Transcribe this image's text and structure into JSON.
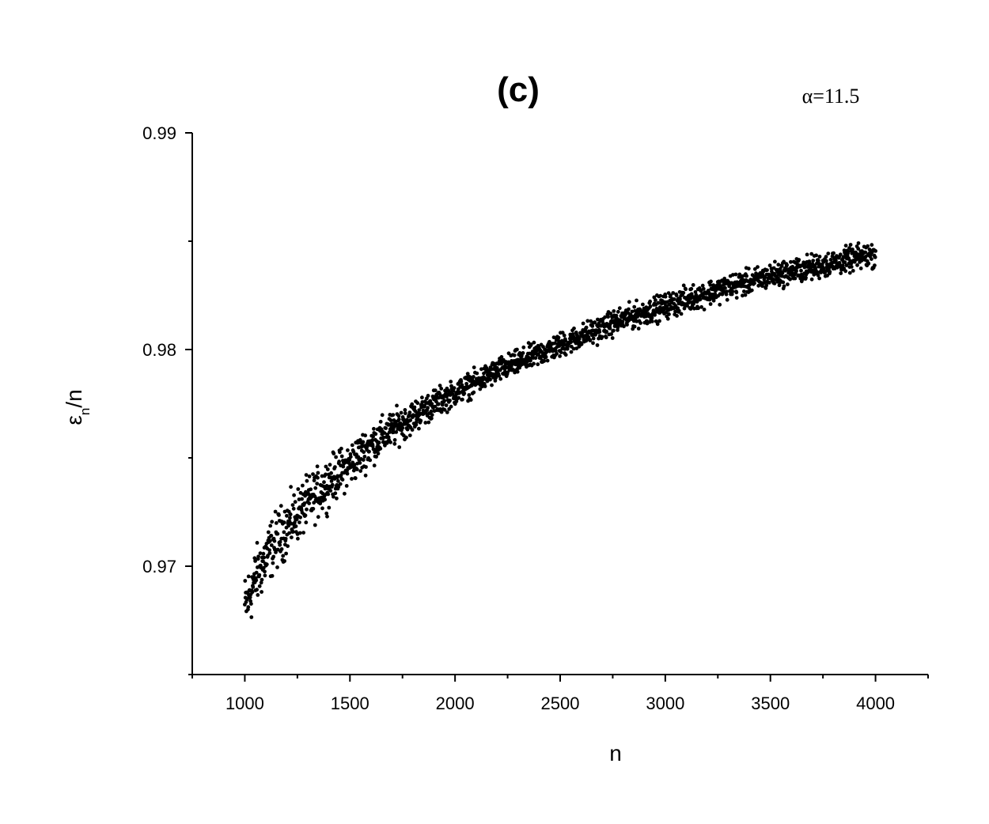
{
  "chart_data": {
    "type": "scatter",
    "panel_label": "(c)",
    "annotation": "α=11.5",
    "xlabel": "n",
    "ylabel_main": "ε",
    "ylabel_sub": "n",
    "ylabel_tail": "/n",
    "xlim": [
      750,
      4250
    ],
    "ylim": [
      0.965,
      0.99
    ],
    "x_ticks": [
      1000,
      1500,
      2000,
      2500,
      3000,
      3500,
      4000
    ],
    "x_tick_labels": [
      "1000",
      "1500",
      "2000",
      "2500",
      "3000",
      "3500",
      "4000"
    ],
    "y_ticks": [
      0.97,
      0.98,
      0.99
    ],
    "y_tick_labels": [
      "0.97",
      "0.98",
      "0.99"
    ],
    "grid": false,
    "marker_color": "#000000",
    "series": [
      {
        "x": [
          1000,
          1050,
          1100,
          1150,
          1200,
          1250,
          1300,
          1350,
          1400,
          1450,
          1500,
          1600,
          1700,
          1800,
          1900,
          2000,
          2100,
          2200,
          2300,
          2400,
          2500,
          2600,
          2700,
          2800,
          2900,
          3000,
          3100,
          3200,
          3300,
          3400,
          3500,
          3600,
          3700,
          3800,
          3900,
          4000
        ],
        "y": [
          0.9681,
          0.9694,
          0.9704,
          0.9712,
          0.9718,
          0.9724,
          0.9729,
          0.9734,
          0.9739,
          0.9743,
          0.9747,
          0.9756,
          0.9763,
          0.9769,
          0.9775,
          0.978,
          0.9785,
          0.979,
          0.9794,
          0.9798,
          0.9802,
          0.9806,
          0.981,
          0.9814,
          0.9817,
          0.982,
          0.9823,
          0.9826,
          0.9829,
          0.9831,
          0.9834,
          0.9836,
          0.9838,
          0.984,
          0.9842,
          0.9844
        ]
      }
    ]
  }
}
